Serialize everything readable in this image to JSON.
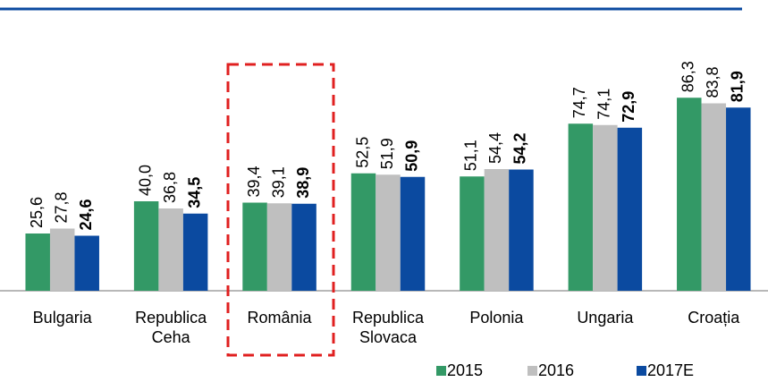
{
  "chart_data": {
    "type": "bar",
    "categories": [
      "Bulgaria",
      "Republica Ceha",
      "România",
      "Republica Slovaca",
      "Polonia",
      "Ungaria",
      "Croația"
    ],
    "series": [
      {
        "name": "2015",
        "color": "#339966",
        "values": [
          25.6,
          40.0,
          39.4,
          52.5,
          51.1,
          74.7,
          86.3
        ],
        "value_labels": [
          "25,6",
          "40,0",
          "39,4",
          "52,5",
          "51,1",
          "74,7",
          "86,3"
        ]
      },
      {
        "name": "2016",
        "color": "#bfbfbf",
        "values": [
          27.8,
          36.8,
          39.1,
          51.9,
          54.4,
          74.1,
          83.8
        ],
        "value_labels": [
          "27,8",
          "36,8",
          "39,1",
          "51,9",
          "54,4",
          "74,1",
          "83,8"
        ]
      },
      {
        "name": "2017E",
        "color": "#0b4aa0",
        "bold": true,
        "values": [
          24.6,
          34.5,
          38.9,
          50.9,
          54.2,
          72.9,
          81.9
        ],
        "value_labels": [
          "24,6",
          "34,5",
          "38,9",
          "50,9",
          "54,2",
          "72,9",
          "81,9"
        ]
      }
    ],
    "ylim": [
      0,
      100
    ],
    "grid": false
  }
}
